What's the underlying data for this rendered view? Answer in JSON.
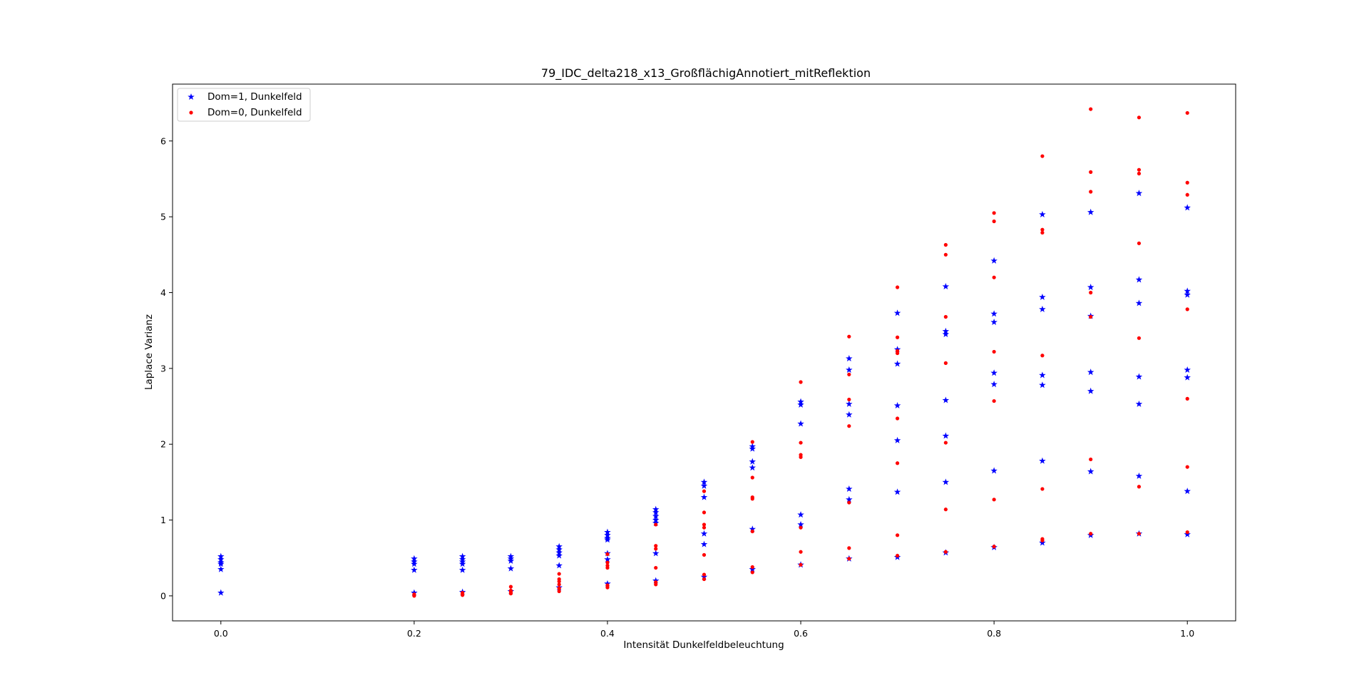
{
  "chart_data": {
    "type": "scatter",
    "title": "79_IDC_delta218_x13_GroßflächigAnnotiert_mitReflektion",
    "xlabel": "Intensität Dunkelfeldbeleuchtung",
    "ylabel": "Laplace Varianz",
    "xlim": [
      -0.05,
      1.05
    ],
    "ylim": [
      -0.33,
      6.75
    ],
    "xticks": [
      0.0,
      0.2,
      0.4,
      0.6,
      0.8,
      1.0
    ],
    "xtick_labels": [
      "0.0",
      "0.2",
      "0.4",
      "0.6",
      "0.8",
      "1.0"
    ],
    "yticks": [
      0,
      1,
      2,
      3,
      4,
      5,
      6
    ],
    "ytick_labels": [
      "0",
      "1",
      "2",
      "3",
      "4",
      "5",
      "6"
    ],
    "grid": false,
    "legend_position": "top-left",
    "series": [
      {
        "name": "Dom=1, Dunkelfeld",
        "marker": "star",
        "color": "#0000ff",
        "points": [
          [
            0.0,
            0.52
          ],
          [
            0.0,
            0.48
          ],
          [
            0.0,
            0.44
          ],
          [
            0.0,
            0.42
          ],
          [
            0.0,
            0.35
          ],
          [
            0.0,
            0.04
          ],
          [
            0.2,
            0.49
          ],
          [
            0.2,
            0.45
          ],
          [
            0.2,
            0.42
          ],
          [
            0.2,
            0.34
          ],
          [
            0.2,
            0.04
          ],
          [
            0.25,
            0.52
          ],
          [
            0.25,
            0.48
          ],
          [
            0.25,
            0.45
          ],
          [
            0.25,
            0.42
          ],
          [
            0.25,
            0.34
          ],
          [
            0.25,
            0.05
          ],
          [
            0.3,
            0.52
          ],
          [
            0.3,
            0.49
          ],
          [
            0.3,
            0.46
          ],
          [
            0.3,
            0.36
          ],
          [
            0.3,
            0.06
          ],
          [
            0.35,
            0.65
          ],
          [
            0.35,
            0.61
          ],
          [
            0.35,
            0.57
          ],
          [
            0.35,
            0.53
          ],
          [
            0.35,
            0.4
          ],
          [
            0.35,
            0.11
          ],
          [
            0.4,
            0.84
          ],
          [
            0.4,
            0.8
          ],
          [
            0.4,
            0.76
          ],
          [
            0.4,
            0.74
          ],
          [
            0.4,
            0.56
          ],
          [
            0.4,
            0.48
          ],
          [
            0.4,
            0.16
          ],
          [
            0.45,
            1.14
          ],
          [
            0.45,
            1.1
          ],
          [
            0.45,
            1.05
          ],
          [
            0.45,
            1.0
          ],
          [
            0.45,
            0.96
          ],
          [
            0.45,
            0.56
          ],
          [
            0.45,
            0.2
          ],
          [
            0.5,
            1.5
          ],
          [
            0.5,
            1.45
          ],
          [
            0.5,
            1.3
          ],
          [
            0.5,
            0.82
          ],
          [
            0.5,
            0.68
          ],
          [
            0.5,
            0.25
          ],
          [
            0.55,
            1.97
          ],
          [
            0.55,
            1.94
          ],
          [
            0.55,
            1.77
          ],
          [
            0.55,
            1.69
          ],
          [
            0.55,
            0.88
          ],
          [
            0.55,
            0.35
          ],
          [
            0.6,
            2.56
          ],
          [
            0.6,
            2.52
          ],
          [
            0.6,
            2.27
          ],
          [
            0.6,
            1.07
          ],
          [
            0.6,
            0.94
          ],
          [
            0.6,
            0.41
          ],
          [
            0.65,
            3.13
          ],
          [
            0.65,
            2.98
          ],
          [
            0.65,
            2.53
          ],
          [
            0.65,
            2.39
          ],
          [
            0.65,
            1.41
          ],
          [
            0.65,
            1.27
          ],
          [
            0.65,
            0.49
          ],
          [
            0.7,
            3.73
          ],
          [
            0.7,
            3.25
          ],
          [
            0.7,
            3.06
          ],
          [
            0.7,
            2.51
          ],
          [
            0.7,
            2.05
          ],
          [
            0.7,
            1.37
          ],
          [
            0.7,
            0.51
          ],
          [
            0.75,
            4.08
          ],
          [
            0.75,
            3.49
          ],
          [
            0.75,
            3.45
          ],
          [
            0.75,
            2.58
          ],
          [
            0.75,
            2.11
          ],
          [
            0.75,
            1.5
          ],
          [
            0.75,
            0.57
          ],
          [
            0.8,
            4.42
          ],
          [
            0.8,
            3.72
          ],
          [
            0.8,
            3.61
          ],
          [
            0.8,
            2.94
          ],
          [
            0.8,
            2.79
          ],
          [
            0.8,
            1.65
          ],
          [
            0.8,
            0.64
          ],
          [
            0.85,
            5.03
          ],
          [
            0.85,
            3.94
          ],
          [
            0.85,
            3.78
          ],
          [
            0.85,
            2.91
          ],
          [
            0.85,
            2.78
          ],
          [
            0.85,
            1.78
          ],
          [
            0.85,
            0.7
          ],
          [
            0.9,
            5.06
          ],
          [
            0.9,
            4.07
          ],
          [
            0.9,
            3.69
          ],
          [
            0.9,
            2.95
          ],
          [
            0.9,
            2.7
          ],
          [
            0.9,
            1.64
          ],
          [
            0.9,
            0.8
          ],
          [
            0.95,
            5.31
          ],
          [
            0.95,
            4.17
          ],
          [
            0.95,
            3.86
          ],
          [
            0.95,
            2.89
          ],
          [
            0.95,
            2.53
          ],
          [
            0.95,
            1.58
          ],
          [
            0.95,
            0.82
          ],
          [
            1.0,
            5.12
          ],
          [
            1.0,
            4.02
          ],
          [
            1.0,
            3.97
          ],
          [
            1.0,
            2.98
          ],
          [
            1.0,
            2.88
          ],
          [
            1.0,
            1.38
          ],
          [
            1.0,
            0.81
          ]
        ]
      },
      {
        "name": "Dom=0, Dunkelfeld",
        "marker": "circle",
        "color": "#ff0000",
        "points": [
          [
            0.2,
            0.02
          ],
          [
            0.2,
            0.0
          ],
          [
            0.25,
            0.04
          ],
          [
            0.25,
            0.02
          ],
          [
            0.25,
            0.01
          ],
          [
            0.3,
            0.12
          ],
          [
            0.3,
            0.07
          ],
          [
            0.3,
            0.05
          ],
          [
            0.3,
            0.03
          ],
          [
            0.35,
            0.29
          ],
          [
            0.35,
            0.22
          ],
          [
            0.35,
            0.19
          ],
          [
            0.35,
            0.15
          ],
          [
            0.35,
            0.1
          ],
          [
            0.35,
            0.06
          ],
          [
            0.4,
            0.55
          ],
          [
            0.4,
            0.44
          ],
          [
            0.4,
            0.4
          ],
          [
            0.4,
            0.37
          ],
          [
            0.4,
            0.14
          ],
          [
            0.4,
            0.11
          ],
          [
            0.45,
            0.66
          ],
          [
            0.45,
            0.62
          ],
          [
            0.45,
            0.94
          ],
          [
            0.45,
            0.37
          ],
          [
            0.45,
            0.18
          ],
          [
            0.45,
            0.15
          ],
          [
            0.5,
            1.38
          ],
          [
            0.5,
            1.1
          ],
          [
            0.5,
            0.94
          ],
          [
            0.5,
            0.9
          ],
          [
            0.5,
            0.54
          ],
          [
            0.5,
            0.28
          ],
          [
            0.5,
            0.22
          ],
          [
            0.55,
            2.03
          ],
          [
            0.55,
            1.56
          ],
          [
            0.55,
            1.3
          ],
          [
            0.55,
            1.28
          ],
          [
            0.55,
            0.85
          ],
          [
            0.55,
            0.38
          ],
          [
            0.55,
            0.31
          ],
          [
            0.6,
            2.82
          ],
          [
            0.6,
            2.02
          ],
          [
            0.6,
            1.86
          ],
          [
            0.6,
            1.83
          ],
          [
            0.6,
            0.9
          ],
          [
            0.6,
            0.58
          ],
          [
            0.6,
            0.41
          ],
          [
            0.65,
            3.42
          ],
          [
            0.65,
            2.92
          ],
          [
            0.65,
            2.59
          ],
          [
            0.65,
            2.24
          ],
          [
            0.65,
            1.23
          ],
          [
            0.65,
            0.63
          ],
          [
            0.65,
            0.49
          ],
          [
            0.7,
            4.07
          ],
          [
            0.7,
            3.41
          ],
          [
            0.7,
            3.23
          ],
          [
            0.7,
            3.2
          ],
          [
            0.7,
            2.34
          ],
          [
            0.7,
            1.75
          ],
          [
            0.7,
            0.8
          ],
          [
            0.7,
            0.53
          ],
          [
            0.75,
            4.63
          ],
          [
            0.75,
            4.5
          ],
          [
            0.75,
            3.68
          ],
          [
            0.75,
            3.07
          ],
          [
            0.75,
            2.02
          ],
          [
            0.75,
            1.14
          ],
          [
            0.75,
            0.58
          ],
          [
            0.8,
            5.05
          ],
          [
            0.8,
            4.94
          ],
          [
            0.8,
            4.2
          ],
          [
            0.8,
            3.22
          ],
          [
            0.8,
            2.57
          ],
          [
            0.8,
            1.27
          ],
          [
            0.8,
            0.65
          ],
          [
            0.85,
            5.8
          ],
          [
            0.85,
            4.83
          ],
          [
            0.85,
            4.79
          ],
          [
            0.85,
            3.17
          ],
          [
            0.85,
            1.41
          ],
          [
            0.85,
            0.75
          ],
          [
            0.85,
            0.73
          ],
          [
            0.9,
            6.42
          ],
          [
            0.9,
            5.59
          ],
          [
            0.9,
            5.33
          ],
          [
            0.9,
            4.0
          ],
          [
            0.9,
            3.68
          ],
          [
            0.9,
            1.8
          ],
          [
            0.9,
            0.82
          ],
          [
            0.95,
            6.31
          ],
          [
            0.95,
            5.62
          ],
          [
            0.95,
            5.57
          ],
          [
            0.95,
            4.65
          ],
          [
            0.95,
            3.4
          ],
          [
            0.95,
            1.44
          ],
          [
            0.95,
            0.82
          ],
          [
            1.0,
            6.37
          ],
          [
            1.0,
            5.45
          ],
          [
            1.0,
            5.29
          ],
          [
            1.0,
            3.78
          ],
          [
            1.0,
            2.6
          ],
          [
            1.0,
            1.7
          ],
          [
            1.0,
            0.84
          ]
        ]
      }
    ]
  }
}
